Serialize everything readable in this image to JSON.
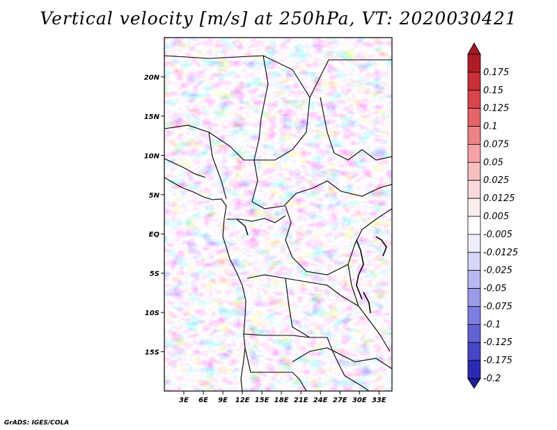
{
  "title": "Vertical velocity [m/s] at 250hPa, VT: 2020030421",
  "credit": "GrADS: IGES/COLA",
  "map": {
    "lon_range": [
      0,
      35
    ],
    "lat_range": [
      -20,
      25
    ],
    "lat_ticks": [
      {
        "value": 20,
        "label": "20N"
      },
      {
        "value": 15,
        "label": "15N"
      },
      {
        "value": 10,
        "label": "10N"
      },
      {
        "value": 5,
        "label": "5N"
      },
      {
        "value": 0,
        "label": "EQ"
      },
      {
        "value": -5,
        "label": "5S"
      },
      {
        "value": -10,
        "label": "10S"
      },
      {
        "value": -15,
        "label": "15S"
      }
    ],
    "lon_ticks": [
      {
        "value": 3,
        "label": "3E"
      },
      {
        "value": 6,
        "label": "6E"
      },
      {
        "value": 9,
        "label": "9E"
      },
      {
        "value": 12,
        "label": "12E"
      },
      {
        "value": 15,
        "label": "15E"
      },
      {
        "value": 18,
        "label": "18E"
      },
      {
        "value": 21,
        "label": "21E"
      },
      {
        "value": 24,
        "label": "24E"
      },
      {
        "value": 27,
        "label": "27E"
      },
      {
        "value": 30,
        "label": "30E"
      },
      {
        "value": 33,
        "label": "33E"
      }
    ]
  },
  "colorbar": {
    "levels": [
      {
        "label": "0.175",
        "color": "#b01c26"
      },
      {
        "label": "0.15",
        "color": "#c82f37"
      },
      {
        "label": "0.125",
        "color": "#d9474d"
      },
      {
        "label": "0.1",
        "color": "#e46468"
      },
      {
        "label": "0.075",
        "color": "#ec8387"
      },
      {
        "label": "0.05",
        "color": "#f3a2a5"
      },
      {
        "label": "0.025",
        "color": "#f7bfc1"
      },
      {
        "label": "0.0125",
        "color": "#fbd9da"
      },
      {
        "label": "0.005",
        "color": "#fdeeee"
      },
      {
        "label": "-0.005",
        "color": "#ffffff"
      },
      {
        "label": "-0.0125",
        "color": "#eeeefd"
      },
      {
        "label": "-0.025",
        "color": "#d6d6f8"
      },
      {
        "label": "-0.05",
        "color": "#b8b8f2"
      },
      {
        "label": "-0.075",
        "color": "#9b9bea"
      },
      {
        "label": "-0.1",
        "color": "#7e7ee0"
      },
      {
        "label": "-0.125",
        "color": "#6262d4"
      },
      {
        "label": "-0.175",
        "color": "#4646c6"
      },
      {
        "label": "-0.2",
        "color": "#2a2ab4"
      }
    ],
    "top_color": "#a51a22",
    "bottom_color": "#1f1f9e"
  }
}
